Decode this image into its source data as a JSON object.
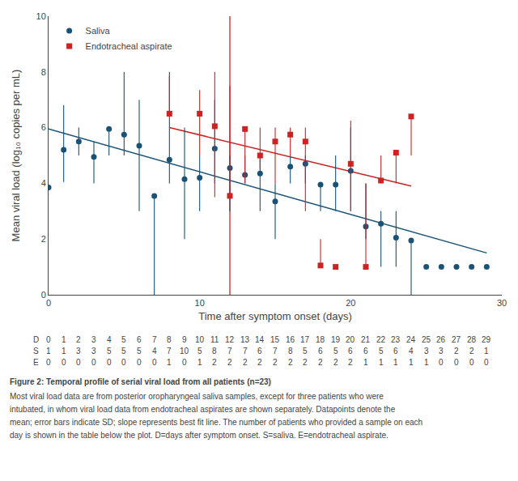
{
  "chart_data": {
    "type": "scatter",
    "title": "Figure 2: Temporal profile of serial viral load from all patients (n=23)",
    "caption": [
      "Most viral load data are from posterior oropharyngeal saliva samples, except for three patients who were",
      "intubated, in whom viral load data from endotracheal aspirates are shown separately. Datapoints denote the",
      "mean; error bars indicate SD; slope represents best fit line. The number of patients who provided a sample on each",
      "day is shown in the table below the plot. D=days after symptom onset. S=saliva. E=endotracheal aspirate."
    ],
    "xlabel": "Time after symptom onset (days)",
    "ylabel": "Mean viral load (log₁₀ copies per mL)",
    "xlim": [
      0,
      30
    ],
    "ylim": [
      0,
      10
    ],
    "xticks": [
      0,
      10,
      20,
      30
    ],
    "yticks": [
      0,
      2,
      4,
      6,
      8,
      10
    ],
    "grid": false,
    "legend": "upper left",
    "series": [
      {
        "name": "Saliva",
        "color": "#1a5276",
        "marker": "circle",
        "x": [
          0,
          1,
          2,
          3,
          4,
          5,
          6,
          7,
          8,
          9,
          10,
          11,
          12,
          13,
          14,
          15,
          16,
          17,
          18,
          19,
          20,
          21,
          22,
          23,
          24,
          25,
          26,
          27,
          28,
          29
        ],
        "values": [
          3.85,
          5.2,
          5.5,
          4.95,
          5.95,
          5.75,
          5.35,
          3.55,
          4.85,
          4.15,
          4.2,
          5.25,
          4.55,
          4.3,
          4.35,
          3.35,
          4.6,
          4.7,
          3.95,
          3.95,
          4.45,
          2.45,
          2.55,
          2.05,
          1.95,
          1.0,
          1.0,
          1.0,
          1.0,
          1.0
        ],
        "error_low": [
          0.0,
          1.15,
          0.5,
          0.95,
          0.95,
          0.75,
          2.35,
          3.55,
          0.85,
          2.15,
          1.2,
          1.25,
          1.55,
          0.3,
          1.35,
          1.35,
          0.6,
          0.7,
          0.95,
          0.95,
          1.45,
          0.45,
          1.55,
          1.05,
          1.95,
          0.0,
          0.0,
          0.0,
          0.0,
          0.0
        ],
        "error_high": [
          0.0,
          1.6,
          0.5,
          0.55,
          0.05,
          2.25,
          1.65,
          0.0,
          3.15,
          1.85,
          0.8,
          1.75,
          0.45,
          0.7,
          0.65,
          0.65,
          0.4,
          0.3,
          0.05,
          1.05,
          1.55,
          1.55,
          0.45,
          0.95,
          0.05,
          0.0,
          0.0,
          0.0,
          0.0,
          0.0
        ],
        "fit": {
          "x": [
            0,
            29
          ],
          "values": [
            5.95,
            1.5
          ]
        }
      },
      {
        "name": "Endotracheal aspirate",
        "color": "#cc2222",
        "marker": "square",
        "x": [
          8,
          10,
          11,
          12,
          13,
          14,
          15,
          16,
          17,
          18,
          19,
          20,
          21,
          22,
          23,
          24
        ],
        "values": [
          6.5,
          6.5,
          6.05,
          3.55,
          5.95,
          5.0,
          5.5,
          5.75,
          5.5,
          1.05,
          1.0,
          4.7,
          1.0,
          4.1,
          5.1,
          6.4
        ],
        "error_low": [
          0.0,
          1.5,
          2.55,
          0.0,
          1.95,
          0.5,
          1.5,
          0.75,
          2.5,
          0.05,
          0.0,
          1.7,
          0.0,
          0.1,
          1.1,
          1.4
        ],
        "error_high": [
          1.35,
          0.85,
          1.95,
          3.95,
          0.05,
          1.0,
          0.5,
          0.25,
          0.5,
          0.95,
          0.0,
          1.55,
          3.0,
          0.9,
          0.0,
          0.0
        ],
        "fit": {
          "x": [
            8,
            24
          ],
          "values": [
            6.0,
            3.9
          ]
        }
      }
    ],
    "vline": {
      "x": 12,
      "color": "#cc2222"
    },
    "table": {
      "rows": [
        {
          "label": "D",
          "values": [
            0,
            1,
            2,
            3,
            4,
            5,
            6,
            7,
            8,
            9,
            10,
            11,
            12,
            13,
            14,
            15,
            16,
            17,
            18,
            19,
            20,
            21,
            22,
            23,
            24,
            25,
            26,
            27,
            28,
            29
          ]
        },
        {
          "label": "S",
          "values": [
            1,
            1,
            3,
            3,
            5,
            5,
            5,
            4,
            7,
            10,
            5,
            8,
            7,
            7,
            6,
            7,
            8,
            5,
            6,
            5,
            6,
            6,
            5,
            6,
            4,
            3,
            3,
            2,
            2,
            1
          ]
        },
        {
          "label": "E",
          "values": [
            0,
            0,
            0,
            0,
            0,
            0,
            0,
            0,
            1,
            0,
            1,
            2,
            2,
            2,
            2,
            2,
            2,
            2,
            2,
            2,
            2,
            1,
            1,
            1,
            1,
            1,
            0,
            0,
            0,
            0
          ]
        }
      ]
    }
  }
}
